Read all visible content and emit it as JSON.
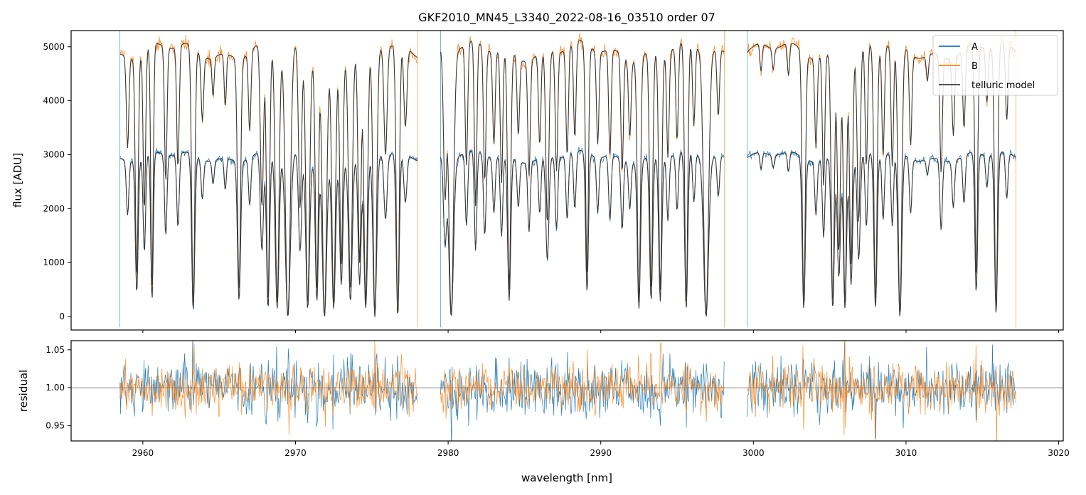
{
  "chart_data": [
    {
      "type": "line",
      "title": "GKF2010_MN45_L3340_2022-08-16_03510  order 07",
      "xlabel": "",
      "ylabel": "flux [ADU]",
      "xlim": [
        2955.3,
        3020.3
      ],
      "ylim": [
        -250,
        5300
      ],
      "yticks": [
        0,
        1000,
        2000,
        3000,
        4000,
        5000
      ],
      "legend_loc": "upper right",
      "gaps": [
        [
          2978.0,
          2979.5
        ],
        [
          2998.1,
          2999.6
        ]
      ],
      "segments": [
        [
          2958.5,
          2978.0
        ],
        [
          2979.5,
          2998.1
        ],
        [
          2999.6,
          3017.2
        ]
      ],
      "series": [
        {
          "name": "A",
          "color": "#1f77b4",
          "continuum": 2960
        },
        {
          "name": "B",
          "color": "#ff7f0e",
          "continuum": 4920
        },
        {
          "name": "telluric model",
          "color": "#3a3a3a"
        }
      ],
      "absorption_lines": [
        {
          "x": 2959.0,
          "depth": 0.35,
          "w": 0.08
        },
        {
          "x": 2959.6,
          "depth": 0.85,
          "w": 0.09
        },
        {
          "x": 2960.1,
          "depth": 0.6,
          "w": 0.08
        },
        {
          "x": 2960.6,
          "depth": 0.9,
          "w": 0.08
        },
        {
          "x": 2961.5,
          "depth": 0.5,
          "w": 0.08
        },
        {
          "x": 2962.3,
          "depth": 0.45,
          "w": 0.08
        },
        {
          "x": 2963.3,
          "depth": 0.96,
          "w": 0.1
        },
        {
          "x": 2963.9,
          "depth": 0.25,
          "w": 0.08
        },
        {
          "x": 2964.6,
          "depth": 0.15,
          "w": 0.07
        },
        {
          "x": 2965.4,
          "depth": 0.2,
          "w": 0.07
        },
        {
          "x": 2966.3,
          "depth": 0.9,
          "w": 0.1
        },
        {
          "x": 2967.0,
          "depth": 0.3,
          "w": 0.08
        },
        {
          "x": 2967.8,
          "depth": 0.6,
          "w": 0.1
        },
        {
          "x": 2968.2,
          "depth": 0.95,
          "w": 0.1
        },
        {
          "x": 2968.8,
          "depth": 0.95,
          "w": 0.12
        },
        {
          "x": 2969.5,
          "depth": 1.0,
          "w": 0.16
        },
        {
          "x": 2970.3,
          "depth": 0.6,
          "w": 0.1
        },
        {
          "x": 2970.8,
          "depth": 0.95,
          "w": 0.12
        },
        {
          "x": 2971.4,
          "depth": 0.9,
          "w": 0.1
        },
        {
          "x": 2971.9,
          "depth": 1.0,
          "w": 0.14
        },
        {
          "x": 2972.5,
          "depth": 0.95,
          "w": 0.12
        },
        {
          "x": 2973.0,
          "depth": 0.8,
          "w": 0.1
        },
        {
          "x": 2973.6,
          "depth": 0.9,
          "w": 0.12
        },
        {
          "x": 2974.2,
          "depth": 0.8,
          "w": 0.1
        },
        {
          "x": 2974.6,
          "depth": 0.95,
          "w": 0.12
        },
        {
          "x": 2975.2,
          "depth": 1.0,
          "w": 0.12
        },
        {
          "x": 2975.9,
          "depth": 0.4,
          "w": 0.1
        },
        {
          "x": 2976.7,
          "depth": 1.0,
          "w": 0.1
        },
        {
          "x": 2977.2,
          "depth": 0.3,
          "w": 0.1
        },
        {
          "x": 2979.8,
          "depth": 0.55,
          "w": 0.1
        },
        {
          "x": 2980.2,
          "depth": 1.0,
          "w": 0.15
        },
        {
          "x": 2981.2,
          "depth": 0.45,
          "w": 0.08
        },
        {
          "x": 2981.8,
          "depth": 0.6,
          "w": 0.08
        },
        {
          "x": 2982.4,
          "depth": 0.5,
          "w": 0.08
        },
        {
          "x": 2983.0,
          "depth": 0.35,
          "w": 0.08
        },
        {
          "x": 2983.5,
          "depth": 0.5,
          "w": 0.08
        },
        {
          "x": 2984.0,
          "depth": 0.9,
          "w": 0.1
        },
        {
          "x": 2984.6,
          "depth": 0.3,
          "w": 0.08
        },
        {
          "x": 2985.3,
          "depth": 0.45,
          "w": 0.08
        },
        {
          "x": 2986.0,
          "depth": 0.35,
          "w": 0.08
        },
        {
          "x": 2986.5,
          "depth": 0.65,
          "w": 0.1
        },
        {
          "x": 2987.1,
          "depth": 0.45,
          "w": 0.08
        },
        {
          "x": 2987.8,
          "depth": 0.4,
          "w": 0.08
        },
        {
          "x": 2988.3,
          "depth": 0.35,
          "w": 0.08
        },
        {
          "x": 2989.1,
          "depth": 0.85,
          "w": 0.09
        },
        {
          "x": 2989.8,
          "depth": 0.35,
          "w": 0.08
        },
        {
          "x": 2990.6,
          "depth": 0.4,
          "w": 0.08
        },
        {
          "x": 2991.4,
          "depth": 0.45,
          "w": 0.08
        },
        {
          "x": 2991.9,
          "depth": 0.3,
          "w": 0.08
        },
        {
          "x": 2992.5,
          "depth": 0.95,
          "w": 0.1
        },
        {
          "x": 2993.3,
          "depth": 0.9,
          "w": 0.1
        },
        {
          "x": 2993.9,
          "depth": 0.9,
          "w": 0.1
        },
        {
          "x": 2994.4,
          "depth": 0.4,
          "w": 0.08
        },
        {
          "x": 2995.0,
          "depth": 0.35,
          "w": 0.08
        },
        {
          "x": 2995.6,
          "depth": 0.95,
          "w": 0.1
        },
        {
          "x": 2996.1,
          "depth": 0.3,
          "w": 0.08
        },
        {
          "x": 2996.9,
          "depth": 1.0,
          "w": 0.16
        },
        {
          "x": 2997.7,
          "depth": 0.25,
          "w": 0.08
        },
        {
          "x": 3000.5,
          "depth": 0.1,
          "w": 0.07
        },
        {
          "x": 3001.3,
          "depth": 0.08,
          "w": 0.07
        },
        {
          "x": 3002.3,
          "depth": 0.12,
          "w": 0.07
        },
        {
          "x": 3003.3,
          "depth": 0.95,
          "w": 0.1
        },
        {
          "x": 3004.1,
          "depth": 0.35,
          "w": 0.08
        },
        {
          "x": 3004.6,
          "depth": 0.5,
          "w": 0.08
        },
        {
          "x": 3005.2,
          "depth": 0.95,
          "w": 0.1
        },
        {
          "x": 3005.6,
          "depth": 0.75,
          "w": 0.1
        },
        {
          "x": 3006.0,
          "depth": 0.95,
          "w": 0.1
        },
        {
          "x": 3006.4,
          "depth": 0.8,
          "w": 0.1
        },
        {
          "x": 3006.9,
          "depth": 0.65,
          "w": 0.1
        },
        {
          "x": 3007.4,
          "depth": 0.45,
          "w": 0.08
        },
        {
          "x": 3008.0,
          "depth": 0.95,
          "w": 0.1
        },
        {
          "x": 3008.5,
          "depth": 0.4,
          "w": 0.08
        },
        {
          "x": 3009.1,
          "depth": 0.45,
          "w": 0.08
        },
        {
          "x": 3009.6,
          "depth": 1.0,
          "w": 0.12
        },
        {
          "x": 3010.3,
          "depth": 0.35,
          "w": 0.08
        },
        {
          "x": 3011.4,
          "depth": 0.1,
          "w": 0.07
        },
        {
          "x": 3012.3,
          "depth": 0.45,
          "w": 0.08
        },
        {
          "x": 3013.1,
          "depth": 0.3,
          "w": 0.08
        },
        {
          "x": 3013.8,
          "depth": 0.3,
          "w": 0.08
        },
        {
          "x": 3014.6,
          "depth": 0.85,
          "w": 0.09
        },
        {
          "x": 3015.3,
          "depth": 0.2,
          "w": 0.08
        },
        {
          "x": 3015.9,
          "depth": 0.98,
          "w": 0.1
        },
        {
          "x": 3016.6,
          "depth": 0.28,
          "w": 0.08
        }
      ]
    },
    {
      "type": "line",
      "title": "",
      "xlabel": "wavelength [nm]",
      "ylabel": "residual",
      "xlim": [
        2955.3,
        3020.3
      ],
      "ylim": [
        0.93,
        1.062
      ],
      "yticks": [
        0.95,
        1.0,
        1.05
      ],
      "reference_line": 1.0,
      "xticks": [
        2960,
        2970,
        2980,
        2990,
        3000,
        3010,
        3020
      ],
      "series": [
        {
          "name": "A",
          "color": "#1f77b4"
        },
        {
          "name": "B",
          "color": "#ff7f0e"
        }
      ]
    }
  ],
  "labels": {
    "title": "GKF2010_MN45_L3340_2022-08-16_03510  order 07",
    "ylabel_top": "flux [ADU]",
    "ylabel_bottom": "residual",
    "xlabel": "wavelength [nm]"
  },
  "legend": {
    "items": [
      {
        "label": "A",
        "color": "#1f77b4"
      },
      {
        "label": "B",
        "color": "#ff7f0e"
      },
      {
        "label": "telluric model",
        "color": "#3a3a3a"
      }
    ]
  },
  "tick_labels": {
    "top_y": [
      "0",
      "1000",
      "2000",
      "3000",
      "4000",
      "5000"
    ],
    "bottom_y": [
      "0.95",
      "1.00",
      "1.05"
    ],
    "x": [
      "2960",
      "2970",
      "2980",
      "2990",
      "3000",
      "3010",
      "3020"
    ]
  }
}
